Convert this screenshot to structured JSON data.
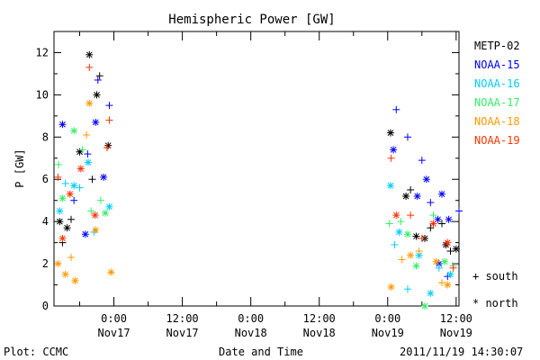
{
  "chart_data": {
    "type": "scatter",
    "title": "Hemispheric Power [GW]",
    "ylabel": "P [GW]",
    "xlabel": "Date and Time",
    "ylim": [
      0,
      13
    ],
    "xlim": [
      -10.5,
      60.5
    ],
    "x_unit": "hours from 2011-11-17 00:00",
    "yticks": [
      0,
      2,
      4,
      6,
      8,
      10,
      12
    ],
    "xticks": [
      {
        "x": 0,
        "time": "0:00",
        "date": "Nov17"
      },
      {
        "x": 12,
        "time": "12:00",
        "date": "Nov17"
      },
      {
        "x": 24,
        "time": "0:00",
        "date": "Nov18"
      },
      {
        "x": 36,
        "time": "12:00",
        "date": "Nov18"
      },
      {
        "x": 48,
        "time": "0:00",
        "date": "Nov19"
      },
      {
        "x": 60,
        "time": "12:00",
        "date": "Nov19"
      }
    ],
    "legend_position": "right",
    "marker_legend": [
      {
        "marker": "+",
        "label": "south"
      },
      {
        "marker": "*",
        "label": "north"
      }
    ],
    "series": [
      {
        "name": "METP-02",
        "color": "#000000",
        "points": [
          {
            "x": -9.5,
            "y": 4.0,
            "m": "*"
          },
          {
            "x": -9.0,
            "y": 3.0,
            "m": "+"
          },
          {
            "x": -8.2,
            "y": 3.7,
            "m": "*"
          },
          {
            "x": -7.5,
            "y": 4.1,
            "m": "+"
          },
          {
            "x": -6.0,
            "y": 7.3,
            "m": "*"
          },
          {
            "x": -4.3,
            "y": 11.9,
            "m": "*"
          },
          {
            "x": -3.0,
            "y": 10.0,
            "m": "*"
          },
          {
            "x": -2.5,
            "y": 10.9,
            "m": "+"
          },
          {
            "x": -1.0,
            "y": 7.6,
            "m": "*"
          },
          {
            "x": -3.8,
            "y": 6.0,
            "m": "+"
          },
          {
            "x": 48.5,
            "y": 8.2,
            "m": "*"
          },
          {
            "x": 51.2,
            "y": 5.2,
            "m": "*"
          },
          {
            "x": 52.0,
            "y": 5.5,
            "m": "+"
          },
          {
            "x": 53.0,
            "y": 3.3,
            "m": "*"
          },
          {
            "x": 54.5,
            "y": 3.2,
            "m": "*"
          },
          {
            "x": 55.5,
            "y": 3.7,
            "m": "+"
          },
          {
            "x": 57.5,
            "y": 3.9,
            "m": "+"
          },
          {
            "x": 58.2,
            "y": 2.9,
            "m": "*"
          },
          {
            "x": 59.0,
            "y": 2.6,
            "m": "+"
          },
          {
            "x": 60.0,
            "y": 2.7,
            "m": "*"
          }
        ]
      },
      {
        "name": "NOAA-15",
        "color": "#0000ff",
        "points": [
          {
            "x": -9.0,
            "y": 8.6,
            "m": "*"
          },
          {
            "x": -7.0,
            "y": 5.0,
            "m": "+"
          },
          {
            "x": -5.0,
            "y": 3.4,
            "m": "*"
          },
          {
            "x": -3.2,
            "y": 8.7,
            "m": "*"
          },
          {
            "x": -2.8,
            "y": 10.7,
            "m": "+"
          },
          {
            "x": -0.8,
            "y": 9.5,
            "m": "+"
          },
          {
            "x": -1.8,
            "y": 6.1,
            "m": "*"
          },
          {
            "x": -4.6,
            "y": 7.2,
            "m": "+"
          },
          {
            "x": 49.0,
            "y": 7.4,
            "m": "*"
          },
          {
            "x": 49.5,
            "y": 9.3,
            "m": "+"
          },
          {
            "x": 51.5,
            "y": 8.0,
            "m": "+"
          },
          {
            "x": 53.2,
            "y": 5.2,
            "m": "*"
          },
          {
            "x": 54.0,
            "y": 6.9,
            "m": "+"
          },
          {
            "x": 54.8,
            "y": 6.0,
            "m": "*"
          },
          {
            "x": 55.5,
            "y": 4.9,
            "m": "+"
          },
          {
            "x": 56.8,
            "y": 4.1,
            "m": "*"
          },
          {
            "x": 57.5,
            "y": 5.3,
            "m": "*"
          },
          {
            "x": 58.7,
            "y": 4.1,
            "m": "*"
          },
          {
            "x": 60.5,
            "y": 4.5,
            "m": "+"
          },
          {
            "x": 57.0,
            "y": 2.0,
            "m": "*"
          },
          {
            "x": 58.5,
            "y": 1.4,
            "m": "+"
          }
        ]
      },
      {
        "name": "NOAA-16",
        "color": "#00ccff",
        "points": [
          {
            "x": -9.5,
            "y": 4.5,
            "m": "*"
          },
          {
            "x": -8.5,
            "y": 5.8,
            "m": "+"
          },
          {
            "x": -7.0,
            "y": 5.7,
            "m": "*"
          },
          {
            "x": -6.0,
            "y": 5.6,
            "m": "+"
          },
          {
            "x": -4.5,
            "y": 6.8,
            "m": "*"
          },
          {
            "x": -3.5,
            "y": 3.5,
            "m": "+"
          },
          {
            "x": -0.8,
            "y": 4.7,
            "m": "*"
          },
          {
            "x": 48.5,
            "y": 5.7,
            "m": "*"
          },
          {
            "x": 49.2,
            "y": 2.9,
            "m": "+"
          },
          {
            "x": 50.0,
            "y": 3.5,
            "m": "*"
          },
          {
            "x": 51.5,
            "y": 0.8,
            "m": "+"
          },
          {
            "x": 53.5,
            "y": 2.4,
            "m": "*"
          },
          {
            "x": 55.5,
            "y": 0.6,
            "m": "*"
          },
          {
            "x": 57.0,
            "y": 1.8,
            "m": "+"
          },
          {
            "x": 59.0,
            "y": 1.5,
            "m": "*"
          }
        ]
      },
      {
        "name": "NOAA-17",
        "color": "#33ee66",
        "points": [
          {
            "x": -9.7,
            "y": 6.7,
            "m": "+"
          },
          {
            "x": -9.0,
            "y": 5.1,
            "m": "*"
          },
          {
            "x": -7.0,
            "y": 8.3,
            "m": "*"
          },
          {
            "x": -5.5,
            "y": 7.4,
            "m": "+"
          },
          {
            "x": -4.0,
            "y": 4.5,
            "m": "+"
          },
          {
            "x": -2.3,
            "y": 5.0,
            "m": "+"
          },
          {
            "x": -1.5,
            "y": 4.4,
            "m": "*"
          },
          {
            "x": 48.3,
            "y": 3.9,
            "m": "+"
          },
          {
            "x": 50.3,
            "y": 4.0,
            "m": "+"
          },
          {
            "x": 51.5,
            "y": 3.4,
            "m": "*"
          },
          {
            "x": 53.0,
            "y": 1.9,
            "m": "*"
          },
          {
            "x": 54.5,
            "y": 0.0,
            "m": "*"
          },
          {
            "x": 56.0,
            "y": 4.3,
            "m": "+"
          },
          {
            "x": 58.0,
            "y": 2.1,
            "m": "*"
          },
          {
            "x": 59.5,
            "y": 1.9,
            "m": "+"
          }
        ]
      },
      {
        "name": "NOAA-18",
        "color": "#ff9900",
        "points": [
          {
            "x": -9.8,
            "y": 2.0,
            "m": "*"
          },
          {
            "x": -8.5,
            "y": 1.5,
            "m": "*"
          },
          {
            "x": -7.5,
            "y": 2.3,
            "m": "+"
          },
          {
            "x": -6.8,
            "y": 1.2,
            "m": "*"
          },
          {
            "x": -4.8,
            "y": 8.1,
            "m": "+"
          },
          {
            "x": -4.3,
            "y": 9.6,
            "m": "*"
          },
          {
            "x": -3.2,
            "y": 3.6,
            "m": "*"
          },
          {
            "x": -0.5,
            "y": 1.6,
            "m": "*"
          },
          {
            "x": 48.6,
            "y": 0.9,
            "m": "*"
          },
          {
            "x": 50.5,
            "y": 2.2,
            "m": "+"
          },
          {
            "x": 52.0,
            "y": 2.4,
            "m": "*"
          },
          {
            "x": 53.5,
            "y": 2.6,
            "m": "+"
          },
          {
            "x": 56.5,
            "y": 2.1,
            "m": "*"
          },
          {
            "x": 57.5,
            "y": 1.1,
            "m": "+"
          },
          {
            "x": 58.5,
            "y": 1.0,
            "m": "*"
          }
        ]
      },
      {
        "name": "NOAA-19",
        "color": "#ff3300",
        "points": [
          {
            "x": -9.8,
            "y": 6.1,
            "m": "+"
          },
          {
            "x": -9.0,
            "y": 3.2,
            "m": "*"
          },
          {
            "x": -7.7,
            "y": 5.3,
            "m": "*"
          },
          {
            "x": -5.8,
            "y": 6.5,
            "m": "*"
          },
          {
            "x": -4.3,
            "y": 11.3,
            "m": "+"
          },
          {
            "x": -3.3,
            "y": 4.3,
            "m": "*"
          },
          {
            "x": -0.8,
            "y": 8.8,
            "m": "+"
          },
          {
            "x": -1.2,
            "y": 7.5,
            "m": "+"
          },
          {
            "x": 48.6,
            "y": 7.0,
            "m": "+"
          },
          {
            "x": 49.5,
            "y": 4.3,
            "m": "*"
          },
          {
            "x": 52.0,
            "y": 4.3,
            "m": "+"
          },
          {
            "x": 54.0,
            "y": 3.2,
            "m": "+"
          },
          {
            "x": 56.0,
            "y": 3.9,
            "m": "*"
          },
          {
            "x": 58.5,
            "y": 3.0,
            "m": "*"
          },
          {
            "x": 59.5,
            "y": 1.8,
            "m": "+"
          }
        ]
      }
    ]
  },
  "footer": {
    "plot_source": "Plot: CCMC",
    "timestamp": "2011/11/19 14:30:07"
  }
}
